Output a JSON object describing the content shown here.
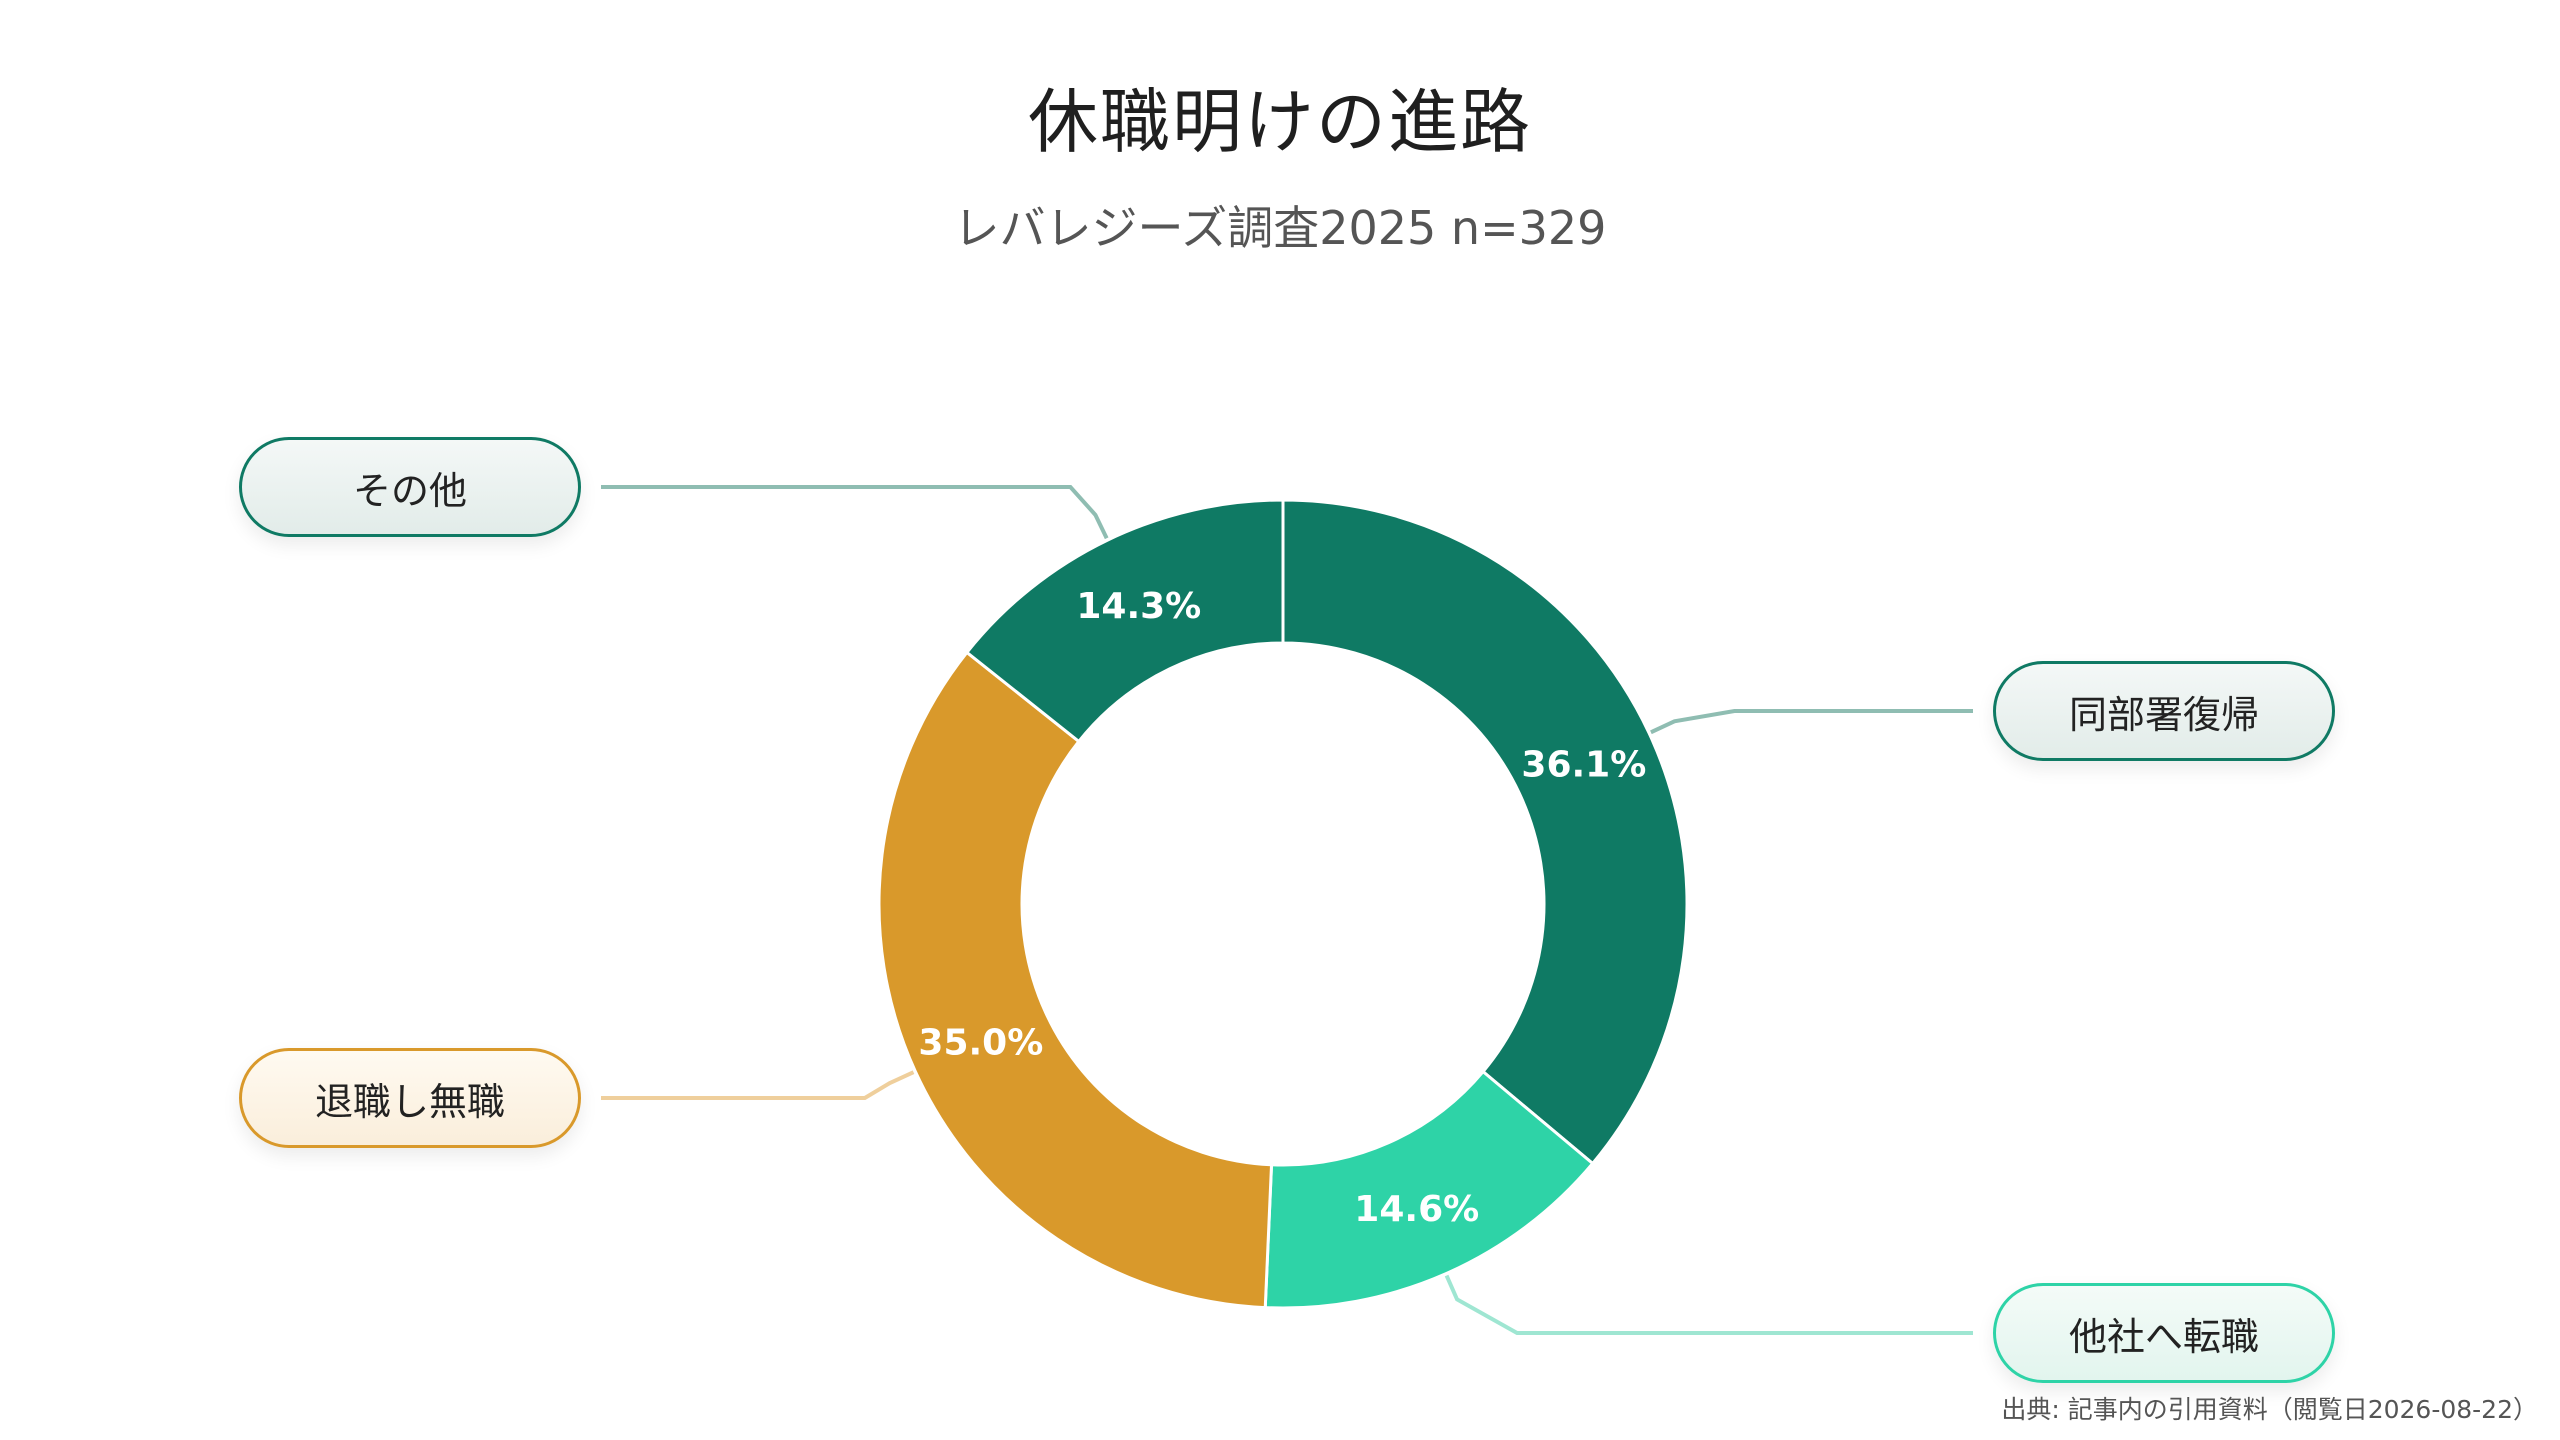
{
  "title": "休職明けの進路",
  "subtitle": "レバレジーズ調査2025 n=329",
  "source": "出典: 記事内の引用資料（閲覧日2026-08-22）",
  "colors": {
    "dark_green": "#0f7a64",
    "mint": "#2ed3a7",
    "amber": "#d9992b",
    "leader_dark": "#8fbdb2",
    "leader_mint": "#9fe6d2",
    "leader_amber": "#efcf9c"
  },
  "chart_data": {
    "type": "pie",
    "donut": true,
    "title": "休職明けの進路",
    "subtitle": "レバレジーズ調査2025 n=329",
    "categories": [
      "同部署復帰",
      "他社へ転職",
      "退職し無職",
      "その他"
    ],
    "values": [
      36.1,
      14.6,
      35.0,
      14.3
    ],
    "labels": [
      "36.1%",
      "14.6%",
      "35.0%",
      "14.3%"
    ],
    "series_colors": [
      "#0f7a64",
      "#2ed3a7",
      "#d9992b",
      "#0f7a64"
    ],
    "legend": "callout labels beside slices"
  }
}
